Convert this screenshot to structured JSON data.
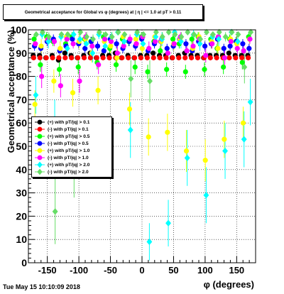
{
  "chart_data": {
    "type": "scatter",
    "title": "Geometrical acceptance for Global vs φ (degrees) at | η | <= 1.0 at pT > 0.11",
    "xlabel": "φ (degrees)",
    "ylabel": "Geometrical acceptance (%)",
    "xlim": [
      -180,
      180
    ],
    "ylim": [
      0,
      100
    ],
    "x_ticks": [
      -150,
      -100,
      -50,
      0,
      50,
      100,
      150
    ],
    "y_ticks": [
      0,
      10,
      20,
      30,
      40,
      50,
      60,
      70,
      80,
      90,
      100
    ],
    "grid": true,
    "legend_position": "left",
    "series": [
      {
        "name": "(+) with pT/|q| > 0.1",
        "color": "#000000",
        "marker": "circle",
        "x": [
          -170,
          -160,
          -150,
          -140,
          -130,
          -120,
          -110,
          -100,
          -90,
          -80,
          -70,
          -60,
          -50,
          -40,
          -30,
          -20,
          -10,
          0,
          10,
          20,
          30,
          40,
          50,
          60,
          70,
          80,
          90,
          100,
          110,
          120,
          130,
          140,
          150,
          160,
          170
        ],
        "y": [
          89,
          89,
          88,
          89,
          87,
          90,
          89,
          88,
          89,
          90,
          88,
          89,
          89,
          90,
          88,
          89,
          88,
          89,
          89,
          90,
          89,
          89,
          88,
          89,
          90,
          89,
          89,
          88,
          89,
          89,
          89,
          90,
          89,
          89,
          89
        ],
        "err": [
          1,
          1,
          1,
          1,
          1,
          1,
          1,
          1,
          1,
          1,
          1,
          1,
          1,
          1,
          1,
          1,
          1,
          1,
          1,
          1,
          1,
          1,
          1,
          1,
          1,
          1,
          1,
          1,
          1,
          1,
          1,
          1,
          1,
          1,
          1
        ]
      },
      {
        "name": "(-) with pT/|q| > 0.1",
        "color": "#ff0000",
        "marker": "circle",
        "x": [
          -170,
          -160,
          -150,
          -140,
          -130,
          -120,
          -110,
          -100,
          -90,
          -80,
          -70,
          -60,
          -50,
          -40,
          -30,
          -20,
          -10,
          0,
          10,
          20,
          30,
          40,
          50,
          60,
          70,
          80,
          90,
          100,
          110,
          120,
          130,
          140,
          150,
          160,
          170
        ],
        "y": [
          88,
          88,
          88,
          88,
          88,
          88,
          88,
          88,
          88,
          88,
          88,
          88,
          88,
          88,
          88,
          88,
          88,
          88,
          88,
          88,
          88,
          88,
          88,
          88,
          88,
          88,
          88,
          88,
          88,
          88,
          88,
          88,
          88,
          88,
          88
        ],
        "err": [
          1,
          1,
          1,
          1,
          1,
          1,
          1,
          1,
          1,
          1,
          1,
          1,
          1,
          1,
          1,
          1,
          1,
          1,
          1,
          1,
          1,
          1,
          1,
          1,
          1,
          1,
          1,
          1,
          1,
          1,
          1,
          1,
          1,
          1,
          1
        ]
      },
      {
        "name": "(+) with pT/|q| > 0.5",
        "color": "#00ff00",
        "marker": "circle",
        "x": [
          -170,
          -160,
          -150,
          -140,
          -130,
          -120,
          -110,
          -100,
          -90,
          -80,
          -70,
          -60,
          -50,
          -40,
          -30,
          -20,
          -10,
          0,
          10,
          20,
          30,
          40,
          50,
          60,
          70,
          80,
          90,
          100,
          110,
          120,
          130,
          140,
          150,
          160,
          170
        ],
        "y": [
          96,
          85,
          97,
          95,
          83,
          94,
          97,
          84,
          96,
          95,
          86,
          97,
          92,
          85,
          96,
          95,
          84,
          97,
          82,
          95,
          91,
          83,
          96,
          94,
          82,
          96,
          97,
          83,
          96,
          92,
          84,
          96,
          95,
          86,
          97
        ],
        "err": [
          2,
          3,
          2,
          2,
          3,
          2,
          2,
          3,
          2,
          2,
          3,
          2,
          2,
          3,
          2,
          2,
          3,
          2,
          3,
          2,
          2,
          3,
          2,
          2,
          3,
          2,
          2,
          3,
          2,
          2,
          3,
          2,
          2,
          3,
          2
        ]
      },
      {
        "name": "(-) with pT/|q| > 0.5",
        "color": "#0000ff",
        "marker": "circle",
        "x": [
          -170,
          -160,
          -150,
          -140,
          -130,
          -120,
          -110,
          -100,
          -90,
          -80,
          -70,
          -60,
          -50,
          -40,
          -30,
          -20,
          -10,
          0,
          10,
          20,
          30,
          40,
          50,
          60,
          70,
          80,
          90,
          100,
          110,
          120,
          130,
          140,
          150,
          160,
          170
        ],
        "y": [
          93,
          92,
          95,
          96,
          91,
          93,
          96,
          94,
          92,
          95,
          93,
          91,
          96,
          94,
          92,
          95,
          93,
          96,
          91,
          94,
          95,
          92,
          93,
          96,
          94,
          91,
          95,
          93,
          94,
          96,
          92,
          93,
          95,
          94,
          92
        ],
        "err": [
          2,
          2,
          2,
          2,
          2,
          2,
          2,
          2,
          2,
          2,
          2,
          2,
          2,
          2,
          2,
          2,
          2,
          2,
          2,
          2,
          2,
          2,
          2,
          2,
          2,
          2,
          2,
          2,
          2,
          2,
          2,
          2,
          2,
          2,
          2
        ]
      },
      {
        "name": "(+) with pT/|q| > 1.0",
        "color": "#ffff00",
        "marker": "circle",
        "x": [
          -170,
          -160,
          -150,
          -140,
          -130,
          -120,
          -110,
          -100,
          -90,
          -80,
          -70,
          -60,
          -50,
          -40,
          -30,
          -20,
          -10,
          0,
          10,
          20,
          30,
          40,
          50,
          60,
          70,
          80,
          90,
          100,
          110,
          120,
          130,
          140,
          150,
          160,
          170
        ],
        "y": [
          68,
          93,
          96,
          78,
          92,
          97,
          73,
          95,
          96,
          90,
          74,
          95,
          93,
          88,
          97,
          66,
          96,
          92,
          54,
          97,
          95,
          56,
          94,
          96,
          48,
          92,
          97,
          44,
          95,
          92,
          53,
          96,
          94,
          60,
          96
        ],
        "err": [
          6,
          3,
          2,
          5,
          3,
          2,
          6,
          3,
          2,
          4,
          6,
          3,
          3,
          4,
          2,
          7,
          2,
          3,
          8,
          2,
          3,
          8,
          3,
          2,
          9,
          3,
          2,
          9,
          3,
          3,
          8,
          2,
          3,
          7,
          2
        ]
      },
      {
        "name": "(-) with pT/|q| > 1.0",
        "color": "#ff00ff",
        "marker": "circle",
        "x": [
          -170,
          -160,
          -150,
          -140,
          -130,
          -120,
          -110,
          -100,
          -90,
          -80,
          -70,
          -60,
          -50,
          -40,
          -30,
          -20,
          -10,
          0,
          10,
          20,
          30,
          40,
          50,
          60,
          70,
          80,
          90,
          100,
          110,
          120,
          130,
          140,
          150,
          160,
          170
        ],
        "y": [
          94,
          80,
          96,
          95,
          76,
          96,
          94,
          78,
          97,
          93,
          85,
          96,
          95,
          90,
          93,
          96,
          94,
          97,
          92,
          95,
          96,
          90,
          94,
          97,
          91,
          93,
          96,
          89,
          94,
          97,
          88,
          95,
          92,
          91,
          96
        ],
        "err": [
          2,
          5,
          2,
          2,
          5,
          2,
          2,
          5,
          2,
          3,
          4,
          2,
          2,
          3,
          2,
          2,
          2,
          2,
          3,
          2,
          2,
          3,
          2,
          2,
          3,
          3,
          2,
          3,
          2,
          2,
          3,
          2,
          3,
          3,
          2
        ]
      },
      {
        "name": "(+) with pT/|q| > 2.0",
        "color": "#00ffff",
        "marker": "diamond",
        "x": [
          -170,
          -160,
          -150,
          -140,
          -130,
          -120,
          -110,
          -100,
          -90,
          -80,
          -70,
          -60,
          -50,
          -40,
          -30,
          -20,
          -10,
          0,
          10,
          20,
          30,
          40,
          50,
          60,
          70,
          80,
          90,
          100,
          110,
          120,
          130,
          140,
          150,
          160,
          170
        ],
        "y": [
          72,
          98,
          95,
          60,
          97,
          92,
          98,
          96,
          94,
          90,
          98,
          93,
          97,
          99,
          95,
          57,
          98,
          94,
          9,
          97,
          96,
          17,
          99,
          95,
          45,
          98,
          94,
          29,
          97,
          96,
          48,
          99,
          95,
          53,
          69
        ],
        "err": [
          8,
          2,
          3,
          10,
          2,
          3,
          2,
          3,
          3,
          4,
          2,
          3,
          2,
          1,
          3,
          12,
          2,
          3,
          8,
          2,
          3,
          10,
          1,
          3,
          12,
          2,
          3,
          12,
          2,
          3,
          12,
          1,
          3,
          12,
          10
        ]
      },
      {
        "name": "(-) with pT/|q| > 2.0",
        "color": "#66dd66",
        "marker": "diamond",
        "x": [
          -170,
          -160,
          -150,
          -140,
          -130,
          -120,
          -110,
          -100,
          -90,
          -80,
          -70,
          -60,
          -50,
          -40,
          -30,
          -20,
          -10,
          0,
          10,
          20,
          30,
          40,
          50,
          60,
          70,
          80,
          90,
          100,
          110,
          120,
          130,
          140,
          150,
          160,
          170
        ],
        "y": [
          98,
          99,
          97,
          22,
          98,
          98,
          43,
          99,
          97,
          96,
          99,
          98,
          97,
          99,
          98,
          79,
          99,
          98,
          78,
          99,
          97,
          99,
          98,
          97,
          99,
          98,
          96,
          99,
          98,
          99,
          97,
          99,
          98,
          84,
          99
        ],
        "err": [
          1,
          1,
          2,
          14,
          1,
          1,
          15,
          1,
          2,
          2,
          1,
          1,
          2,
          1,
          1,
          8,
          1,
          1,
          9,
          1,
          2,
          1,
          1,
          2,
          1,
          1,
          2,
          1,
          1,
          1,
          2,
          1,
          1,
          7,
          1
        ]
      }
    ]
  },
  "footer": {
    "datestamp": "Tue May 15 10:10:09 2018"
  }
}
